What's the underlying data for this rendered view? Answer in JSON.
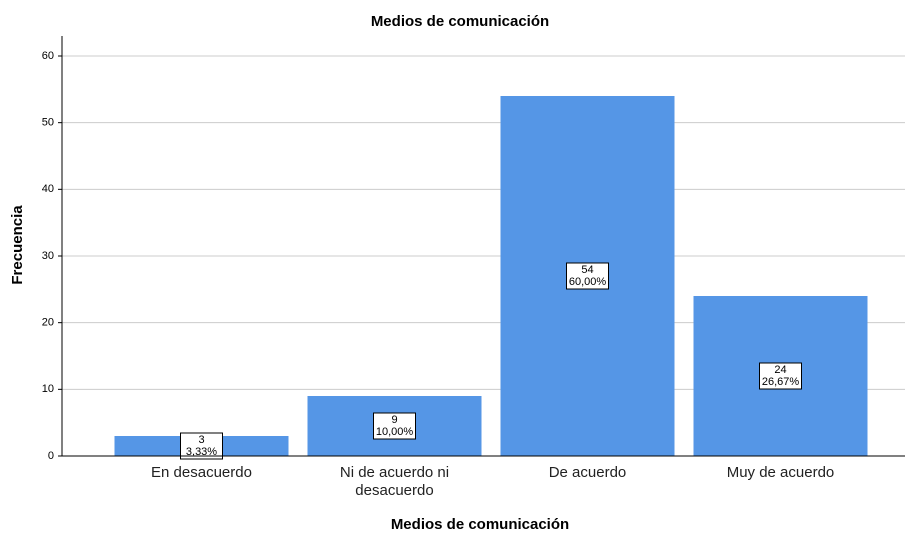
{
  "chart_data": {
    "type": "bar",
    "title": "Medios de comunicación",
    "x_label": "Medios de comunicación",
    "y_label": "Frecuencia",
    "categories": [
      "En desacuerdo",
      "Ni de acuerdo ni desacuerdo",
      "De acuerdo",
      "Muy de acuerdo"
    ],
    "values": [
      3,
      9,
      54,
      24
    ],
    "percentage_labels": [
      "3,33%",
      "10,00%",
      "60,00%",
      "26,67%"
    ],
    "color": "#5596e6",
    "ylim": [
      0,
      63
    ],
    "yticks": [
      0,
      10,
      20,
      30,
      40,
      50,
      60
    ],
    "grid": true
  }
}
